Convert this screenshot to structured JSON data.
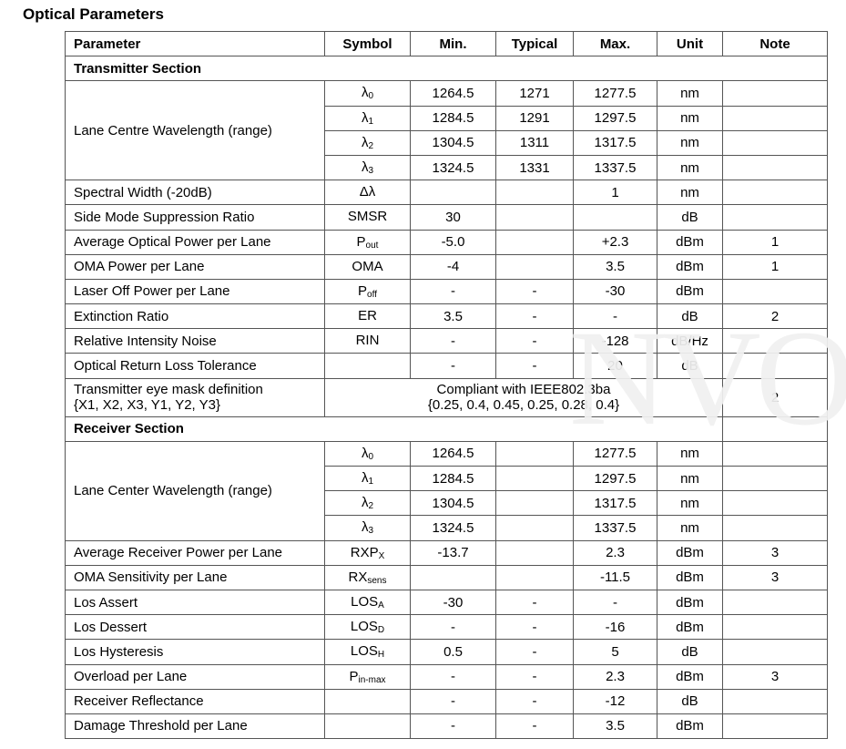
{
  "title": "Optical Parameters",
  "headers": [
    "Parameter",
    "Symbol",
    "Min.",
    "Typical",
    "Max.",
    "Unit",
    "Note"
  ],
  "watermark": "NVO",
  "sections": [
    {
      "label": "Transmitter Section",
      "wavelength": {
        "parameter": "Lane Centre Wavelength (range)",
        "rows": [
          {
            "sym": "λ",
            "sub": "0",
            "min": "1264.5",
            "typ": "1271",
            "max": "1277.5",
            "unit": "nm"
          },
          {
            "sym": "λ",
            "sub": "1",
            "min": "1284.5",
            "typ": "1291",
            "max": "1297.5",
            "unit": "nm"
          },
          {
            "sym": "λ",
            "sub": "2",
            "min": "1304.5",
            "typ": "1311",
            "max": "1317.5",
            "unit": "nm"
          },
          {
            "sym": "λ",
            "sub": "3",
            "min": "1324.5",
            "typ": "1331",
            "max": "1337.5",
            "unit": "nm"
          }
        ]
      },
      "rows": [
        {
          "param": "Spectral Width (-20dB)",
          "sym": "Δλ",
          "sub": "",
          "min": "",
          "typ": "",
          "max": "1",
          "unit": "nm",
          "note": ""
        },
        {
          "param": "Side Mode Suppression Ratio",
          "sym": "SMSR",
          "sub": "",
          "min": "30",
          "typ": "",
          "max": "",
          "unit": "dB",
          "note": ""
        },
        {
          "param": "Average Optical Power per Lane",
          "sym": "P",
          "sub": "out",
          "min": "-5.0",
          "typ": "",
          "max": "+2.3",
          "unit": "dBm",
          "note": "1"
        },
        {
          "param": "OMA Power per Lane",
          "sym": "OMA",
          "sub": "",
          "min": "-4",
          "typ": "",
          "max": "3.5",
          "unit": "dBm",
          "note": "1"
        },
        {
          "param": "Laser Off Power per Lane",
          "sym": "P",
          "sub": "off",
          "min": "-",
          "typ": "-",
          "max": "-30",
          "unit": "dBm",
          "note": ""
        },
        {
          "param": "Extinction Ratio",
          "sym": "ER",
          "sub": "",
          "min": "3.5",
          "typ": "-",
          "max": "-",
          "unit": "dB",
          "note": "2"
        },
        {
          "param": "Relative Intensity Noise",
          "sym": "RIN",
          "sub": "",
          "min": "-",
          "typ": "-",
          "max": "-128",
          "unit": "dB/Hz",
          "note": ""
        },
        {
          "param": "Optical Return Loss Tolerance",
          "sym": "",
          "sub": "",
          "min": "-",
          "typ": "-",
          "max": "20",
          "unit": "dB",
          "note": ""
        }
      ],
      "eye": {
        "param_line1": "Transmitter eye mask definition",
        "param_line2": "{X1, X2, X3, Y1, Y2, Y3}",
        "value_line1": "Compliant with IEEE802.3ba",
        "value_line2": "{0.25, 0.4, 0.45, 0.25, 0.28, 0.4}",
        "note": "2"
      }
    },
    {
      "label": "Receiver Section",
      "wavelength": {
        "parameter": "Lane Center Wavelength (range)",
        "rows": [
          {
            "sym": "λ",
            "sub": "0",
            "min": "1264.5",
            "typ": "",
            "max": "1277.5",
            "unit": "nm"
          },
          {
            "sym": "λ",
            "sub": "1",
            "min": "1284.5",
            "typ": "",
            "max": "1297.5",
            "unit": "nm"
          },
          {
            "sym": "λ",
            "sub": "2",
            "min": "1304.5",
            "typ": "",
            "max": "1317.5",
            "unit": "nm"
          },
          {
            "sym": "λ",
            "sub": "3",
            "min": "1324.5",
            "typ": "",
            "max": "1337.5",
            "unit": "nm"
          }
        ]
      },
      "rows": [
        {
          "param": "Average Receiver Power per Lane",
          "sym": "RXP",
          "sub": "X",
          "min": "-13.7",
          "typ": "",
          "max": "2.3",
          "unit": "dBm",
          "note": "3"
        },
        {
          "param": "OMA Sensitivity per Lane",
          "sym": "RX",
          "sub": "sens",
          "min": "",
          "typ": "",
          "max": "-11.5",
          "unit": "dBm",
          "note": "3"
        },
        {
          "param": "Los Assert",
          "sym": "LOS",
          "sub": "A",
          "min": "-30",
          "typ": "-",
          "max": "-",
          "unit": "dBm",
          "note": ""
        },
        {
          "param": "Los Dessert",
          "sym": "LOS",
          "sub": "D",
          "min": "-",
          "typ": "-",
          "max": "-16",
          "unit": "dBm",
          "note": ""
        },
        {
          "param": "Los Hysteresis",
          "sym": "LOS",
          "sub": "H",
          "min": "0.5",
          "typ": "-",
          "max": "5",
          "unit": "dB",
          "note": ""
        },
        {
          "param": "Overload per Lane",
          "sym": "P",
          "sub": "in-max",
          "min": "-",
          "typ": "-",
          "max": "2.3",
          "unit": "dBm",
          "note": "3"
        },
        {
          "param": "Receiver Reflectance",
          "sym": "",
          "sub": "",
          "min": "-",
          "typ": "-",
          "max": "-12",
          "unit": "dB",
          "note": ""
        },
        {
          "param": "Damage Threshold per Lane",
          "sym": "",
          "sub": "",
          "min": "-",
          "typ": "-",
          "max": "3.5",
          "unit": "dBm",
          "note": ""
        }
      ]
    }
  ]
}
